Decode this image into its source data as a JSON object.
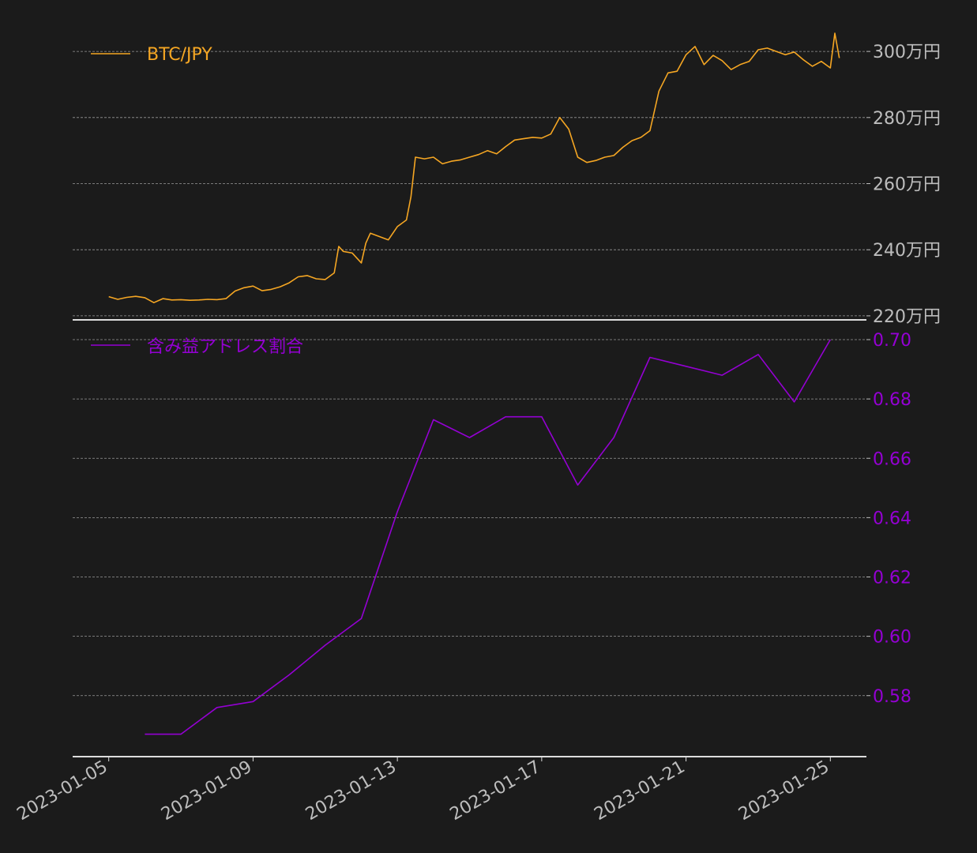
{
  "colors": {
    "background": "#1b1b1b",
    "price": "#f5a623",
    "ratio": "#9400d3",
    "axis_text": "#bdbdbd",
    "grid": "#9a9a9a",
    "axis_line": "#dddddd"
  },
  "chart_data": [
    {
      "type": "line",
      "legend": "BTC/JPY",
      "legend_placement": "top-left",
      "y_axis_side": "right",
      "grid": "horizontal dashed",
      "ylim": [
        2195000,
        3060000
      ],
      "yticks": [
        2200000,
        2400000,
        2600000,
        2800000,
        3000000
      ],
      "ytick_labels": [
        "220万円",
        "240万円",
        "260万円",
        "280万円",
        "300万円"
      ],
      "series": [
        {
          "name": "BTC/JPY",
          "x": [
            "2023-01-05T00:00",
            "2023-01-05T06:00",
            "2023-01-05T12:00",
            "2023-01-05T18:00",
            "2023-01-06T00:00",
            "2023-01-06T06:00",
            "2023-01-06T12:00",
            "2023-01-06T18:00",
            "2023-01-07T00:00",
            "2023-01-07T06:00",
            "2023-01-07T12:00",
            "2023-01-07T18:00",
            "2023-01-08T00:00",
            "2023-01-08T06:00",
            "2023-01-08T12:00",
            "2023-01-08T18:00",
            "2023-01-09T00:00",
            "2023-01-09T06:00",
            "2023-01-09T12:00",
            "2023-01-09T18:00",
            "2023-01-10T00:00",
            "2023-01-10T06:00",
            "2023-01-10T12:00",
            "2023-01-10T18:00",
            "2023-01-11T00:00",
            "2023-01-11T06:00",
            "2023-01-11T09:00",
            "2023-01-11T12:00",
            "2023-01-11T18:00",
            "2023-01-12T00:00",
            "2023-01-12T03:00",
            "2023-01-12T06:00",
            "2023-01-12T12:00",
            "2023-01-12T18:00",
            "2023-01-13T00:00",
            "2023-01-13T06:00",
            "2023-01-13T09:00",
            "2023-01-13T12:00",
            "2023-01-13T18:00",
            "2023-01-14T00:00",
            "2023-01-14T06:00",
            "2023-01-14T12:00",
            "2023-01-14T18:00",
            "2023-01-15T00:00",
            "2023-01-15T06:00",
            "2023-01-15T12:00",
            "2023-01-15T18:00",
            "2023-01-16T00:00",
            "2023-01-16T06:00",
            "2023-01-16T12:00",
            "2023-01-16T18:00",
            "2023-01-17T00:00",
            "2023-01-17T06:00",
            "2023-01-17T12:00",
            "2023-01-17T18:00",
            "2023-01-18T00:00",
            "2023-01-18T06:00",
            "2023-01-18T12:00",
            "2023-01-18T18:00",
            "2023-01-19T00:00",
            "2023-01-19T06:00",
            "2023-01-19T12:00",
            "2023-01-19T18:00",
            "2023-01-20T00:00",
            "2023-01-20T06:00",
            "2023-01-20T12:00",
            "2023-01-20T18:00",
            "2023-01-21T00:00",
            "2023-01-21T06:00",
            "2023-01-21T12:00",
            "2023-01-21T18:00",
            "2023-01-22T00:00",
            "2023-01-22T06:00",
            "2023-01-22T12:00",
            "2023-01-22T18:00",
            "2023-01-23T00:00",
            "2023-01-23T06:00",
            "2023-01-23T12:00",
            "2023-01-23T18:00",
            "2023-01-24T00:00",
            "2023-01-24T06:00",
            "2023-01-24T12:00",
            "2023-01-24T18:00",
            "2023-01-25T00:00",
            "2023-01-25T03:00",
            "2023-01-25T06:00"
          ],
          "values": [
            2258000,
            2250000,
            2256000,
            2259000,
            2255000,
            2240000,
            2252000,
            2248000,
            2249000,
            2247000,
            2248000,
            2250000,
            2249000,
            2252000,
            2275000,
            2285000,
            2290000,
            2276000,
            2280000,
            2288000,
            2300000,
            2318000,
            2322000,
            2312000,
            2310000,
            2330000,
            2410000,
            2395000,
            2390000,
            2360000,
            2420000,
            2450000,
            2440000,
            2430000,
            2470000,
            2490000,
            2560000,
            2680000,
            2675000,
            2680000,
            2660000,
            2668000,
            2672000,
            2680000,
            2688000,
            2700000,
            2690000,
            2712000,
            2732000,
            2736000,
            2740000,
            2738000,
            2750000,
            2800000,
            2765000,
            2680000,
            2664000,
            2670000,
            2680000,
            2685000,
            2710000,
            2730000,
            2740000,
            2760000,
            2880000,
            2935000,
            2940000,
            2990000,
            3015000,
            2960000,
            2988000,
            2972000,
            2945000,
            2960000,
            2970000,
            3005000,
            3010000,
            3000000,
            2990000,
            2998000,
            2975000,
            2955000,
            2970000,
            2950000,
            3055000,
            2980000
          ]
        }
      ]
    },
    {
      "type": "line",
      "legend": "含み益アドレス割合",
      "legend_placement": "top-left",
      "y_axis_side": "right",
      "grid": "horizontal dashed",
      "ylim": [
        0.5605,
        0.7
      ],
      "yticks": [
        0.58,
        0.6,
        0.62,
        0.64,
        0.66,
        0.68,
        0.7
      ],
      "ytick_labels": [
        "0.58",
        "0.60",
        "0.62",
        "0.64",
        "0.66",
        "0.68",
        "0.70"
      ],
      "series": [
        {
          "name": "含み益アドレス割合",
          "x": [
            "2023-01-06",
            "2023-01-07",
            "2023-01-08",
            "2023-01-09",
            "2023-01-10",
            "2023-01-11",
            "2023-01-12",
            "2023-01-13",
            "2023-01-14",
            "2023-01-15",
            "2023-01-16",
            "2023-01-17",
            "2023-01-18",
            "2023-01-19",
            "2023-01-20",
            "2023-01-21",
            "2023-01-22",
            "2023-01-23",
            "2023-01-24",
            "2023-01-25"
          ],
          "values": [
            0.567,
            0.567,
            0.576,
            0.578,
            0.587,
            0.597,
            0.606,
            0.642,
            0.673,
            0.667,
            0.674,
            0.674,
            0.651,
            0.667,
            0.694,
            0.691,
            0.688,
            0.695,
            0.679,
            0.7
          ]
        }
      ]
    }
  ],
  "x_axis": {
    "ticks": [
      "2023-01-05",
      "2023-01-09",
      "2023-01-13",
      "2023-01-17",
      "2023-01-21",
      "2023-01-25"
    ],
    "tick_labels": [
      "2023-01-05",
      "2023-01-09",
      "2023-01-13",
      "2023-01-17",
      "2023-01-21",
      "2023-01-25"
    ],
    "range": [
      "2023-01-04T00:00",
      "2023-01-26T00:00"
    ]
  }
}
